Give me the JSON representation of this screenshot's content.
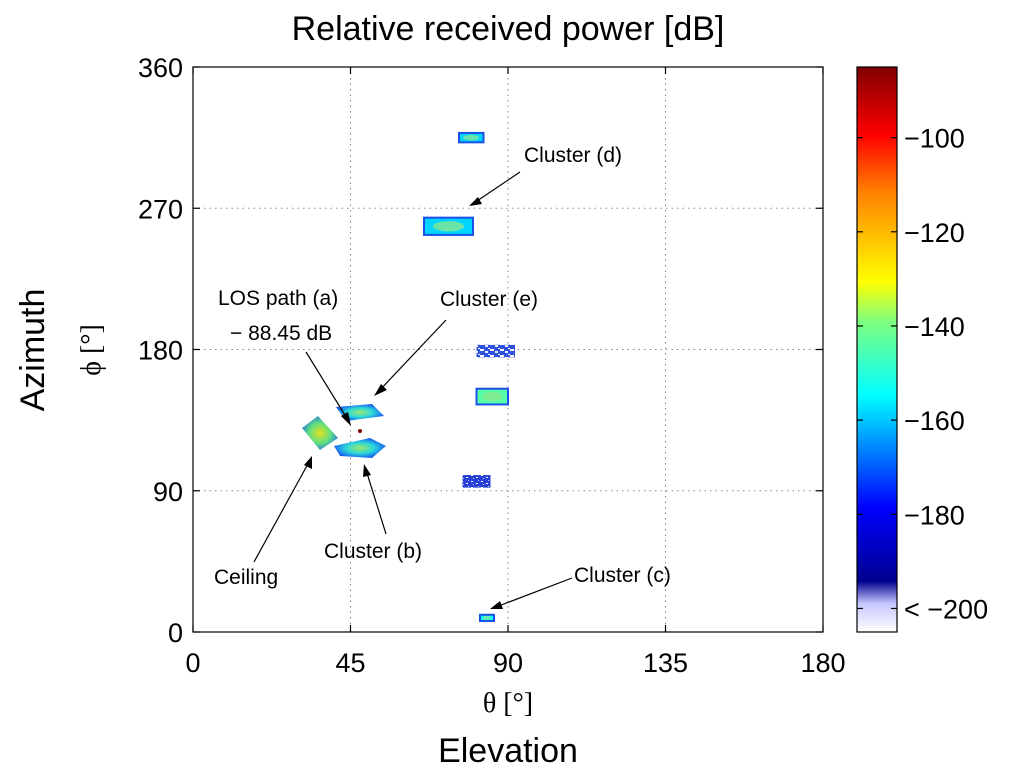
{
  "chart_data": {
    "type": "heatmap",
    "title": "Relative received power [dB]",
    "xlabel_symbol": "θ [°]",
    "xlabel_word": "Elevation",
    "ylabel_symbol": "ϕ [°]",
    "ylabel_word": "Azimuth",
    "xlim": [
      0,
      180
    ],
    "ylim": [
      0,
      360
    ],
    "xticks": [
      "0",
      "45",
      "90",
      "135",
      "180"
    ],
    "yticks": [
      "0",
      "90",
      "180",
      "270",
      "360"
    ],
    "grid": true,
    "colorbar": {
      "range": [
        -205,
        -85
      ],
      "ticks": [
        "−100",
        "−120",
        "−140",
        "−160",
        "−180",
        "< −200"
      ],
      "tick_values": [
        -100,
        -120,
        -140,
        -160,
        -180,
        -200
      ],
      "colormap": "jet",
      "colors": [
        "#00008f",
        "#0000ff",
        "#00ffff",
        "#ffff00",
        "#ff0000",
        "#800000"
      ]
    },
    "clusters": [
      {
        "theta": [
          76,
          83
        ],
        "phi": [
          312,
          318
        ],
        "power": -165
      },
      {
        "theta": [
          66,
          80
        ],
        "phi": [
          253,
          264
        ],
        "power": -165
      },
      {
        "theta": [
          81,
          92
        ],
        "phi": [
          175,
          183
        ],
        "power": -200
      },
      {
        "theta": [
          81,
          90
        ],
        "phi": [
          145,
          155
        ],
        "power": -150
      },
      {
        "theta": [
          77,
          85
        ],
        "phi": [
          92,
          100
        ],
        "power": -185
      },
      {
        "theta": [
          82,
          86
        ],
        "phi": [
          7,
          11
        ],
        "power": -160
      }
    ],
    "annotations": [
      {
        "text": "Cluster (d)",
        "target_theta": 78,
        "target_phi": 268
      },
      {
        "text": "LOS path (a)",
        "text2": "− 88.45 dB",
        "target_theta": 45,
        "target_phi": 130
      },
      {
        "text": "Cluster (e)",
        "target_theta": 52,
        "target_phi": 148
      },
      {
        "text": "Ceiling",
        "target_theta": 34,
        "target_phi": 118
      },
      {
        "text": "Cluster (b)",
        "target_theta": 49,
        "target_phi": 115
      },
      {
        "text": "Cluster (c)",
        "target_theta": 83,
        "target_phi": 10
      }
    ]
  }
}
